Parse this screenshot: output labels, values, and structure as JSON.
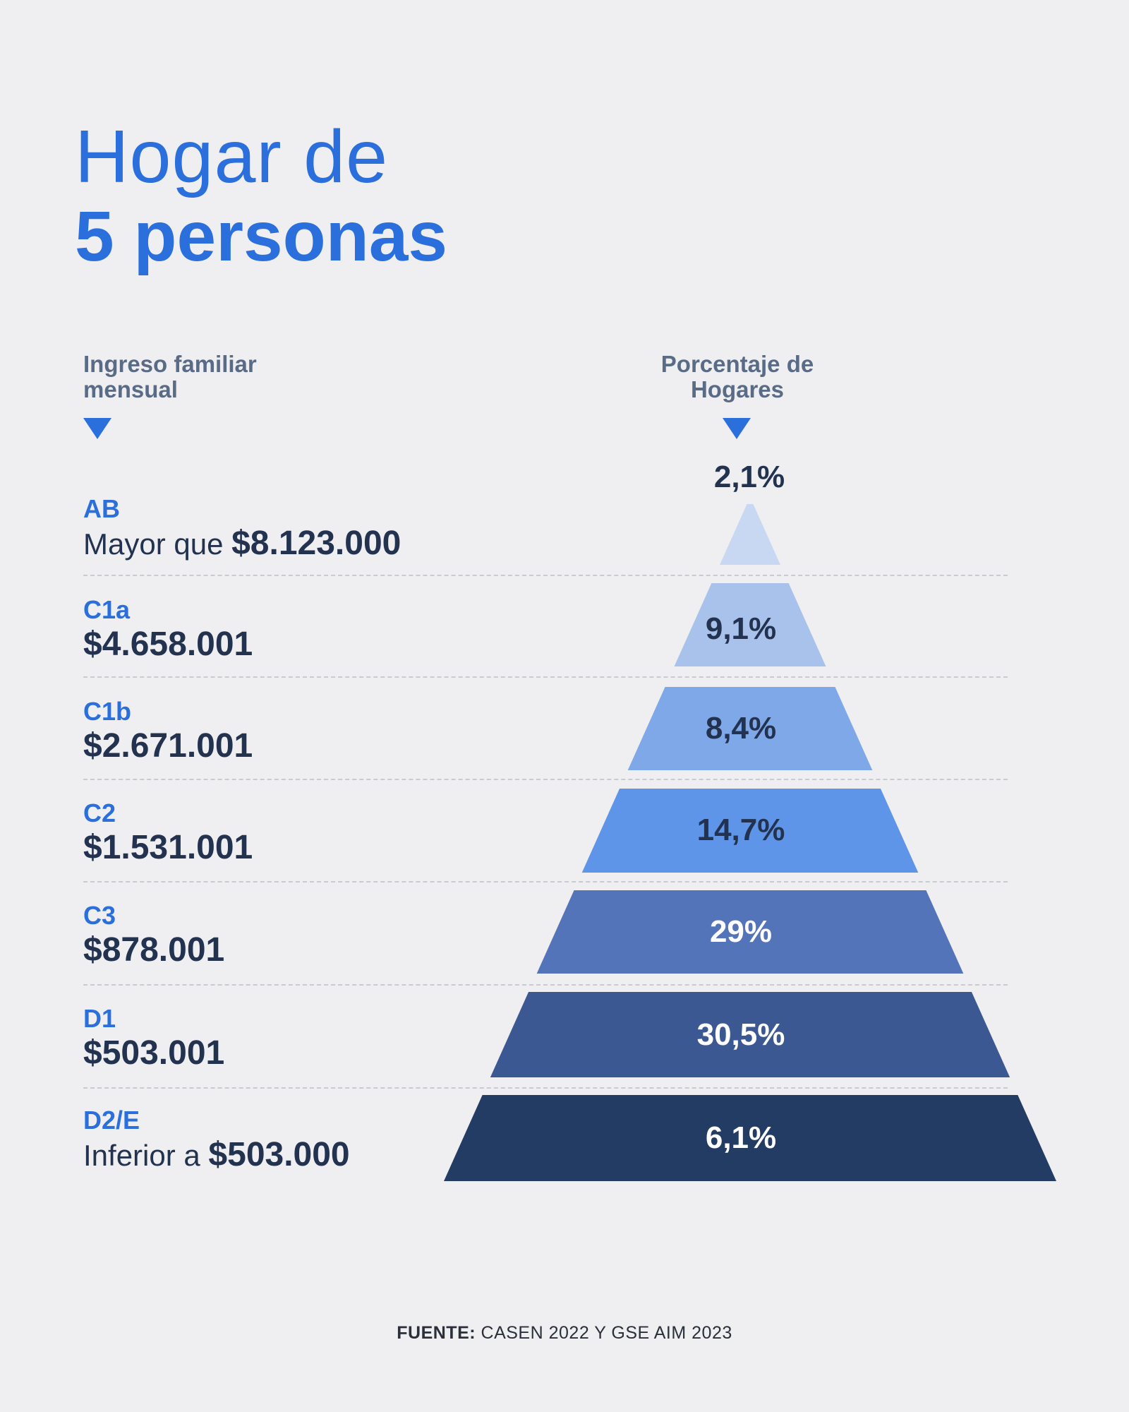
{
  "title": {
    "line1": "Hogar de",
    "line2": "5 personas"
  },
  "headers": {
    "left_line1": "Ingreso familiar",
    "left_line2": "mensual",
    "right_line1": "Porcentaje de",
    "right_line2": "Hogares"
  },
  "rows": [
    {
      "code": "AB",
      "prefix": "Mayor que ",
      "amount": "$8.123.000",
      "percent": "2,1%",
      "percent_value": 2.1,
      "color": "#c9d8f2",
      "text_color": "#22324f"
    },
    {
      "code": "C1a",
      "prefix": "",
      "amount": "$4.658.001",
      "percent": "9,1%",
      "percent_value": 9.1,
      "color": "#a9c2ec",
      "text_color": "#22324f"
    },
    {
      "code": "C1b",
      "prefix": "",
      "amount": "$2.671.001",
      "percent": "8,4%",
      "percent_value": 8.4,
      "color": "#7fa8e9",
      "text_color": "#22324f"
    },
    {
      "code": "C2",
      "prefix": "",
      "amount": "$1.531.001",
      "percent": "14,7%",
      "percent_value": 14.7,
      "color": "#5e95e8",
      "text_color": "#22324f"
    },
    {
      "code": "C3",
      "prefix": "",
      "amount": "$878.001",
      "percent": "29%",
      "percent_value": 29,
      "color": "#5474ba",
      "text_color": "#ffffff"
    },
    {
      "code": "D1",
      "prefix": "",
      "amount": "$503.001",
      "percent": "30,5%",
      "percent_value": 30.5,
      "color": "#3c5893",
      "text_color": "#ffffff"
    },
    {
      "code": "D2/E",
      "prefix": "Inferior a ",
      "amount": "$503.000",
      "percent": "6,1%",
      "percent_value": 6.1,
      "color": "#223c63",
      "text_color": "#ffffff"
    }
  ],
  "source": {
    "label": "FUENTE:",
    "text": " CASEN 2022 Y GSE AIM 2023"
  },
  "colors": {
    "accent": "#2a6fdb",
    "dark": "#22324f",
    "background": "#efeff1"
  }
}
